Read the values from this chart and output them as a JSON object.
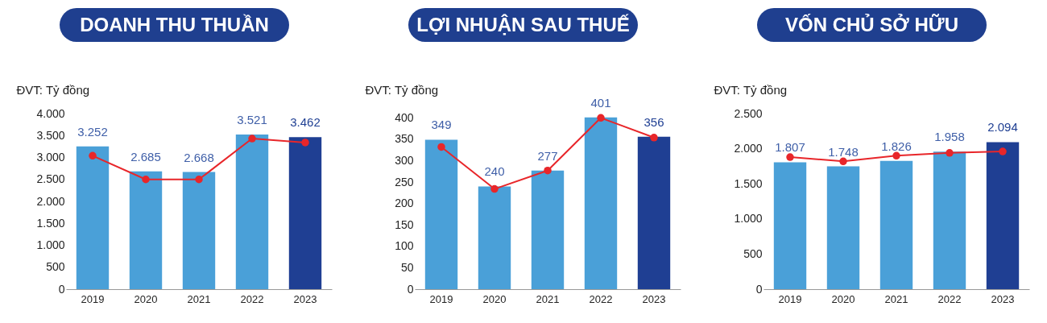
{
  "chart_data": [
    {
      "type": "bar",
      "title": "DOANH THU THUẦN",
      "ylabel": "ĐVT: Tỷ đồng",
      "categories": [
        "2019",
        "2020",
        "2021",
        "2022",
        "2023"
      ],
      "ylim": [
        0,
        4000
      ],
      "yticks": [
        0,
        500,
        {
          "value": 1000,
          "label": "1.000"
        },
        {
          "value": 1500,
          "label": "1.500"
        },
        {
          "value": 2000,
          "label": "2.000"
        },
        {
          "value": 2500,
          "label": "2.500"
        },
        {
          "value": 3000,
          "label": "3.000"
        },
        {
          "value": 3500,
          "label": "3.500"
        },
        {
          "value": 4000,
          "label": "4.000"
        }
      ],
      "marker": "circle",
      "series": [
        {
          "type": "bar",
          "colors": [
            "#4aa0d8",
            "#4aa0d8",
            "#4aa0d8",
            "#4aa0d8",
            "#1f3f93"
          ],
          "values": [
            3252,
            2685,
            2668,
            3521,
            3462
          ],
          "value_labels": [
            "3.252",
            "2.685",
            "2.668",
            "3.521",
            "3.462"
          ]
        },
        {
          "type": "line",
          "color": "#e8262a",
          "values": [
            3040,
            2500,
            2500,
            3430,
            3340
          ]
        }
      ]
    },
    {
      "type": "bar",
      "title": "LỢI NHUẬN SAU THUẾ",
      "ylabel": "ĐVT: Tỷ đồng",
      "categories": [
        "2019",
        "2020",
        "2021",
        "2022",
        "2023"
      ],
      "ylim": [
        0,
        410
      ],
      "yticks": [
        0,
        50,
        100,
        150,
        200,
        250,
        300,
        350,
        400
      ],
      "marker": "circle",
      "series": [
        {
          "type": "bar",
          "colors": [
            "#4aa0d8",
            "#4aa0d8",
            "#4aa0d8",
            "#4aa0d8",
            "#1f3f93"
          ],
          "values": [
            349,
            240,
            277,
            401,
            356
          ],
          "value_labels": [
            "349",
            "240",
            "277",
            "401",
            "356"
          ]
        },
        {
          "type": "line",
          "color": "#e8262a",
          "values": [
            332,
            234,
            277,
            400,
            354
          ]
        }
      ]
    },
    {
      "type": "bar",
      "title": "VỐN CHỦ SỞ HỮU",
      "ylabel": "ĐVT: Tỷ đồng",
      "categories": [
        "2019",
        "2020",
        "2021",
        "2022",
        "2023"
      ],
      "ylim": [
        0,
        2500
      ],
      "yticks": [
        0,
        500,
        {
          "value": 1000,
          "label": "1.000"
        },
        {
          "value": 1500,
          "label": "1.500"
        },
        {
          "value": 2000,
          "label": "2.000"
        },
        {
          "value": 2500,
          "label": "2.500"
        }
      ],
      "marker": "circle",
      "series": [
        {
          "type": "bar",
          "colors": [
            "#4aa0d8",
            "#4aa0d8",
            "#4aa0d8",
            "#4aa0d8",
            "#1f3f93"
          ],
          "values": [
            1807,
            1748,
            1826,
            1958,
            2094
          ],
          "value_labels": [
            "1.807",
            "1.748",
            "1.826",
            "1.958",
            "2.094"
          ]
        },
        {
          "type": "line",
          "color": "#e8262a",
          "values": [
            1880,
            1820,
            1900,
            1940,
            1960
          ]
        }
      ]
    }
  ]
}
